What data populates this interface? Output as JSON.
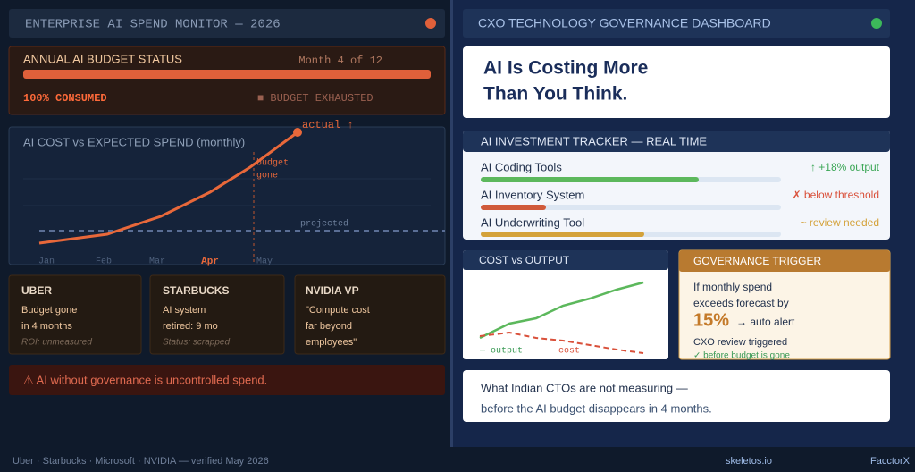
{
  "left": {
    "header": {
      "title": "ENTERPRISE AI SPEND MONITOR — 2026"
    },
    "budget": {
      "title": "ANNUAL AI BUDGET STATUS",
      "month": "Month 4 of 12",
      "consumed": "100% CONSUMED",
      "status": "■ BUDGET EXHAUSTED"
    },
    "cost_chart": {
      "title": "AI COST vs EXPECTED SPEND (monthly)",
      "months": [
        "Jan",
        "Feb",
        "Mar",
        "Apr",
        "May"
      ],
      "actual_label": "actual ↑",
      "marker_label": [
        "budget",
        "gone"
      ],
      "projected_label": "projected"
    },
    "cards": [
      {
        "title": "UBER",
        "lines": [
          "Budget gone",
          "in 4 months"
        ],
        "note": "ROI: unmeasured"
      },
      {
        "title": "STARBUCKS",
        "lines": [
          "AI system",
          "retired: 9 mo"
        ],
        "note": "Status: scrapped"
      },
      {
        "title": "NVIDIA VP",
        "lines": [
          "\"Compute cost",
          "far beyond",
          "employees\""
        ]
      }
    ],
    "warning": "⚠ AI without governance is uncontrolled spend."
  },
  "right": {
    "header": {
      "title": "CXO TECHNOLOGY GOVERNANCE DASHBOARD"
    },
    "headline": [
      "AI Is Costing More",
      "Than You Think."
    ],
    "tracker": {
      "title": "AI INVESTMENT TRACKER — REAL TIME",
      "items": [
        {
          "name": "AI Coding Tools",
          "status": "↑ +18% output"
        },
        {
          "name": "AI Inventory System",
          "status": "✗ below threshold"
        },
        {
          "name": "AI Underwriting Tool",
          "status": "~ review needed"
        }
      ]
    },
    "cost_output": {
      "title": "COST vs OUTPUT",
      "legend": [
        "— output",
        "- - cost"
      ]
    },
    "governance": {
      "title": "GOVERNANCE TRIGGER",
      "lines": [
        "If monthly spend",
        "exceeds forecast by"
      ],
      "figure": "15%",
      "action": "→ auto alert",
      "review": "CXO review triggered",
      "timing": "✓ before budget is gone"
    },
    "callout": [
      "What Indian CTOs are not measuring —",
      "before the AI budget disappears in 4 months."
    ]
  },
  "footer": {
    "sources": "Uber · Starbucks · Microsoft · NVIDIA — verified May 2026",
    "site": "skeletos.io",
    "brand": "FacctorX"
  }
}
